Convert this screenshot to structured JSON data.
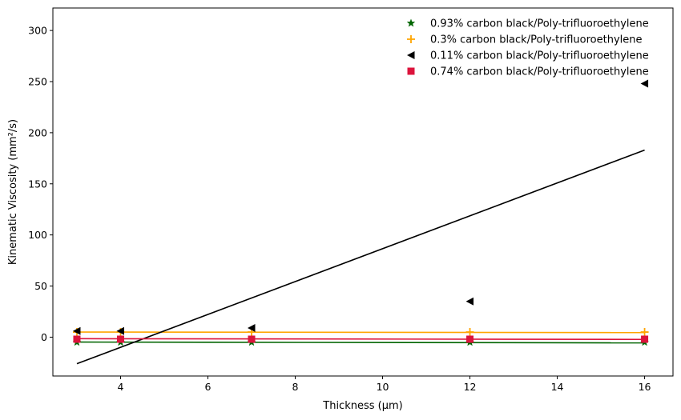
{
  "chart_data": {
    "type": "scatter",
    "title": "",
    "xlabel": "Thickness (μm)",
    "ylabel": "Kinematic Viscosity (mm²/s)",
    "xlim": [
      2.45,
      16.65
    ],
    "ylim": [
      -38,
      322
    ],
    "xticks": [
      4,
      6,
      8,
      10,
      12,
      14,
      16
    ],
    "yticks": [
      0,
      50,
      100,
      150,
      200,
      250,
      300
    ],
    "grid": false,
    "legend_position": "top-right",
    "series": [
      {
        "name": "0.93% carbon black/Poly-trifluoroethylene",
        "color": "#006400",
        "marker": "star",
        "x": [
          3,
          4,
          7,
          12,
          16
        ],
        "y": [
          -5,
          -5,
          -5,
          -5,
          -5
        ],
        "fit": [
          [
            3,
            -4.8
          ],
          [
            16,
            -5.6
          ]
        ]
      },
      {
        "name": "0.3% carbon black/Poly-trifluoroethylene",
        "color": "#FFA500",
        "marker": "plus",
        "x": [
          3,
          4,
          7,
          12,
          16
        ],
        "y": [
          5,
          5,
          5,
          5,
          5
        ],
        "fit": [
          [
            3,
            5
          ],
          [
            16,
            4.5
          ]
        ]
      },
      {
        "name": "0.11% carbon black/Poly-trifluoroethylene",
        "color": "#000000",
        "marker": "triangle-left",
        "x": [
          3,
          4,
          7,
          12,
          16
        ],
        "y": [
          6,
          6,
          9,
          35,
          248
        ],
        "fit": [
          [
            3,
            -26
          ],
          [
            16,
            183
          ]
        ]
      },
      {
        "name": "0.74% carbon black/Poly-trifluoroethylene",
        "color": "#DC143C",
        "marker": "square",
        "x": [
          3,
          4,
          7,
          12,
          16
        ],
        "y": [
          -2,
          -2,
          -2,
          -2,
          -2
        ],
        "fit": [
          [
            3,
            -1.5
          ],
          [
            16,
            -2.2
          ]
        ]
      }
    ]
  }
}
